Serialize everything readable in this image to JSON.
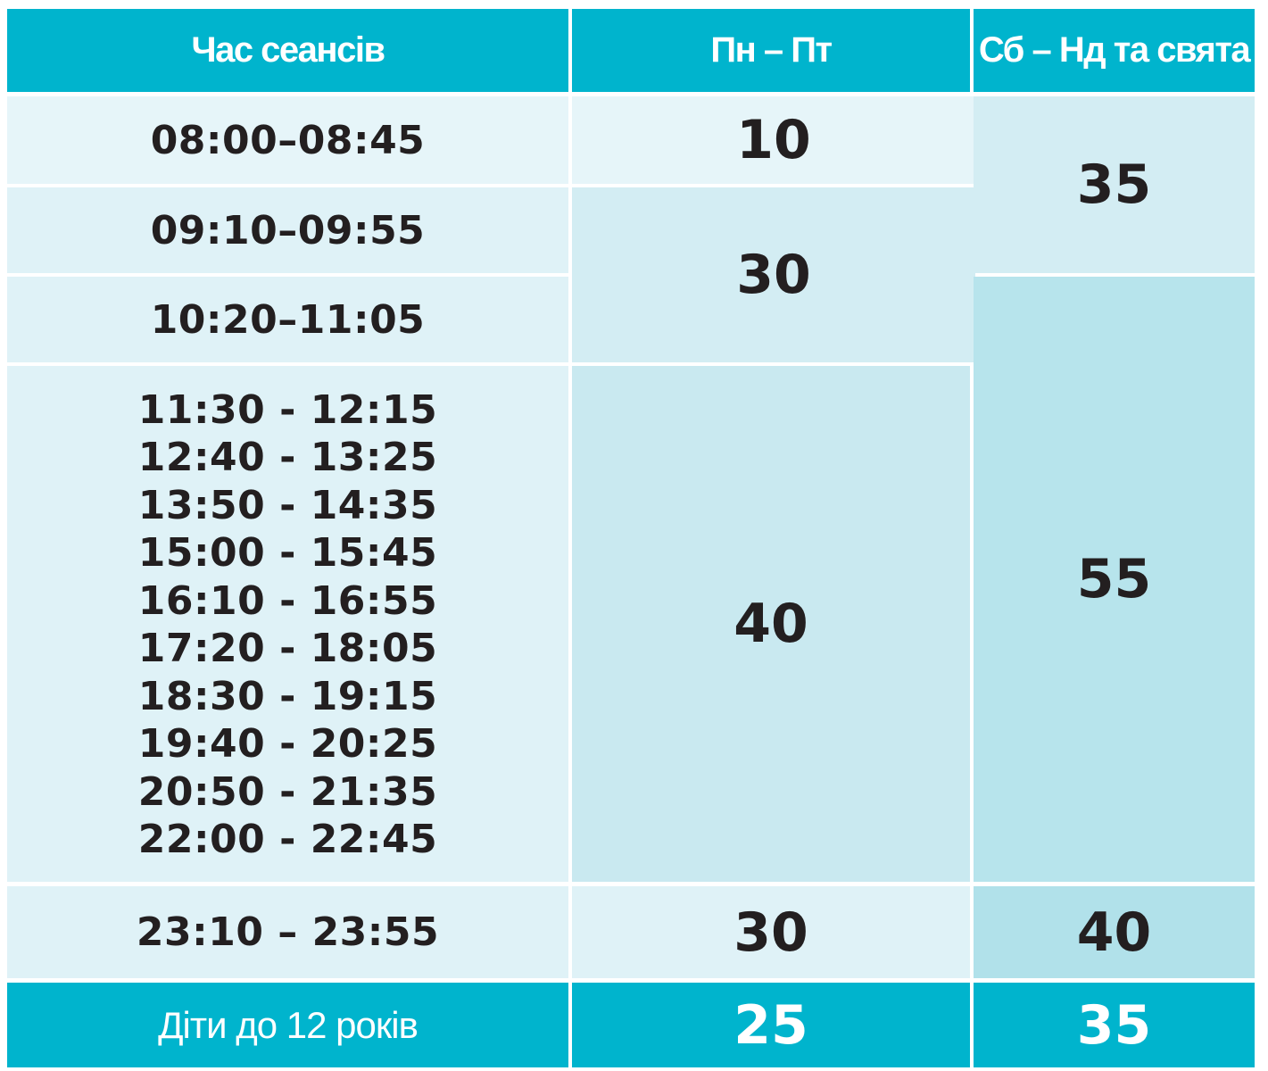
{
  "header": {
    "col_time": "Час сеансів",
    "col_weekday": "Пн – Пт",
    "col_weekend": "Сб – Нд та свята"
  },
  "rows": {
    "r1_time": "08:00–08:45",
    "r2_time": "09:10–09:55",
    "r3_time": "10:20–11:05",
    "r4_times": [
      "11:30 - 12:15",
      "12:40 - 13:25",
      "13:50 - 14:35",
      "15:00 - 15:45",
      "16:10 - 16:55",
      "17:20 - 18:05",
      "18:30 - 19:15",
      "19:40 - 20:25",
      "20:50 - 21:35",
      "22:00 - 22:45"
    ],
    "r5_time": "23:10 – 23:55"
  },
  "prices": {
    "weekday_r1": "10",
    "weekday_r2_r3": "30",
    "weekday_r4": "40",
    "weekday_r5": "30",
    "weekend_r1_r2": "35",
    "weekend_r3_r4": "55",
    "weekend_r5": "40"
  },
  "footer": {
    "label": "Діти до 12 років",
    "weekday": "25",
    "weekend": "35"
  }
}
